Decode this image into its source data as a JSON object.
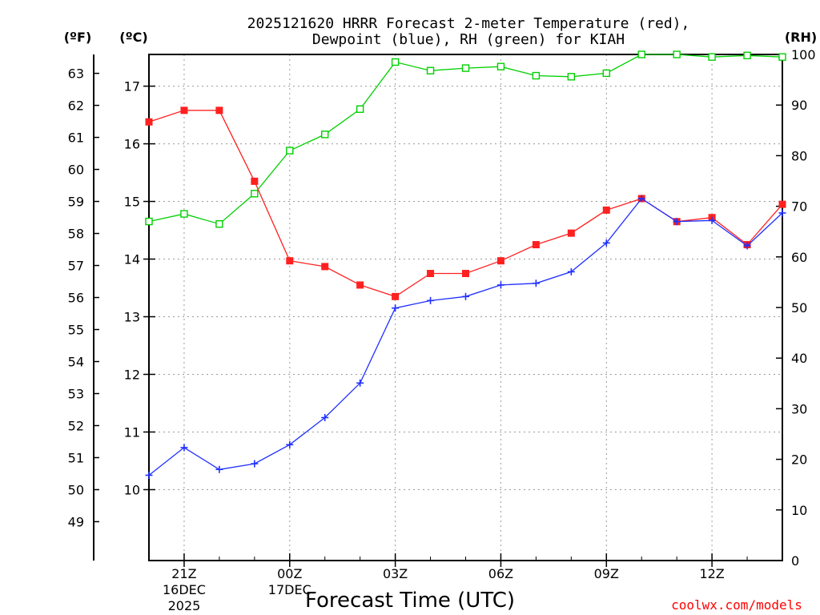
{
  "colors": {
    "temp": "#ff2020",
    "dew": "#2030ff",
    "rh": "#00d000",
    "grid": "#9a9a9a",
    "credit": "#ff2020"
  },
  "chart_data": {
    "type": "line",
    "title_line1": "2025121620 HRRR Forecast 2-meter Temperature (red),",
    "title_line2": "Dewpoint (blue), RH (green) for KIAH",
    "xlabel": "Forecast Time (UTC)",
    "credit": "coolwx.com/models",
    "unit_f": "(ºF)",
    "unit_c": "(ºC)",
    "unit_rh": "(RH)",
    "x_hours": [
      20,
      21,
      22,
      23,
      24,
      25,
      26,
      27,
      28,
      29,
      30,
      31,
      32,
      33,
      34,
      35,
      36,
      37,
      38
    ],
    "x_ticks": [
      {
        "hour": 21,
        "label": "21Z",
        "date": "16DEC",
        "year": "2025"
      },
      {
        "hour": 24,
        "label": "00Z",
        "date": "17DEC",
        "year": ""
      },
      {
        "hour": 27,
        "label": "03Z",
        "date": "",
        "year": ""
      },
      {
        "hour": 30,
        "label": "06Z",
        "date": "",
        "year": ""
      },
      {
        "hour": 33,
        "label": "09Z",
        "date": "",
        "year": ""
      },
      {
        "hour": 36,
        "label": "12Z",
        "date": "",
        "year": ""
      }
    ],
    "xlim": [
      20,
      38
    ],
    "ylim_c": [
      8.77,
      17.55
    ],
    "ylim_rh": [
      0,
      100
    ],
    "c_ticks": [
      10,
      11,
      12,
      13,
      14,
      15,
      16,
      17
    ],
    "f_ticks": [
      49,
      50,
      51,
      52,
      53,
      54,
      55,
      56,
      57,
      58,
      59,
      60,
      61,
      62,
      63
    ],
    "rh_ticks": [
      0,
      10,
      20,
      30,
      40,
      50,
      60,
      70,
      80,
      90,
      100
    ],
    "series": [
      {
        "name": "Temperature",
        "axis": "C",
        "marker": "filled-square",
        "values": [
          16.38,
          16.58,
          16.58,
          15.35,
          13.97,
          13.87,
          13.55,
          13.35,
          13.75,
          13.75,
          13.97,
          14.25,
          14.45,
          14.85,
          15.05,
          14.65,
          14.72,
          14.25,
          14.95
        ]
      },
      {
        "name": "Dewpoint",
        "axis": "C",
        "marker": "plus",
        "values": [
          10.25,
          10.73,
          10.35,
          10.45,
          10.78,
          11.25,
          11.85,
          13.15,
          13.28,
          13.35,
          13.55,
          13.58,
          13.78,
          14.28,
          15.05,
          14.65,
          14.67,
          14.23,
          14.8
        ]
      },
      {
        "name": "RH",
        "axis": "RH",
        "marker": "open-square",
        "values": [
          67,
          68.5,
          66.5,
          72.5,
          81,
          84.2,
          89.2,
          98.5,
          96.8,
          97.3,
          97.6,
          95.8,
          95.6,
          96.3,
          100,
          100,
          99.5,
          99.8,
          99.5
        ]
      }
    ]
  }
}
